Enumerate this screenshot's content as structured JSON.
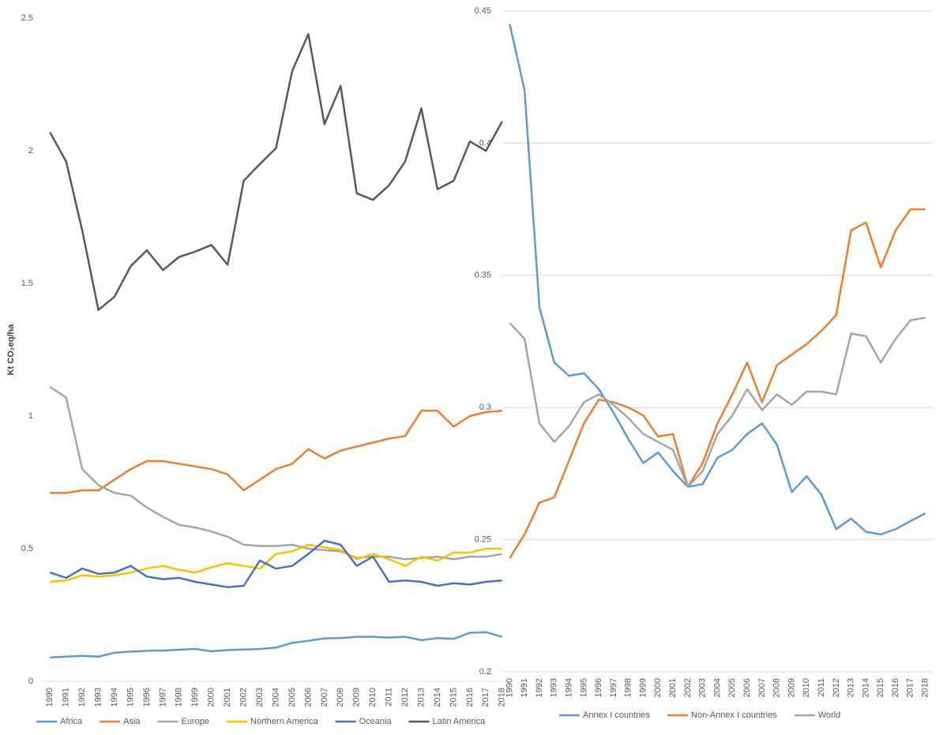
{
  "chart_data": [
    {
      "type": "line",
      "y_label": "Kt CO₂eq/ha",
      "categories": [
        "1990",
        "1991",
        "1992",
        "1993",
        "1994",
        "1995",
        "1996",
        "1997",
        "1998",
        "1999",
        "2000",
        "2001",
        "2002",
        "2003",
        "2004",
        "2005",
        "2006",
        "2007",
        "2008",
        "2009",
        "2010",
        "2011",
        "2012",
        "2013",
        "2014",
        "2015",
        "2016",
        "2017",
        "2018"
      ],
      "ylim": [
        0,
        2.5
      ],
      "yticks": [
        0,
        0.5,
        1,
        1.5,
        2,
        2.5
      ],
      "grid": false,
      "series": [
        {
          "name": "Africa",
          "color": "#5b9bd5",
          "values": [
            0.09,
            0.093,
            0.096,
            0.093,
            0.108,
            0.112,
            0.115,
            0.116,
            0.119,
            0.122,
            0.113,
            0.118,
            0.12,
            0.122,
            0.127,
            0.145,
            0.153,
            0.162,
            0.163,
            0.168,
            0.168,
            0.165,
            0.168,
            0.155,
            0.163,
            0.16,
            0.183,
            0.185,
            0.168
          ]
        },
        {
          "name": "Asia",
          "color": "#ed7d31",
          "values": [
            0.71,
            0.71,
            0.72,
            0.72,
            0.76,
            0.8,
            0.83,
            0.83,
            0.82,
            0.81,
            0.8,
            0.78,
            0.72,
            0.76,
            0.8,
            0.82,
            0.875,
            0.84,
            0.87,
            0.885,
            0.9,
            0.915,
            0.925,
            1.02,
            1.02,
            0.96,
            1.0,
            1.015,
            1.02
          ]
        },
        {
          "name": "Europe",
          "color": "#a5a5a5",
          "values": [
            1.11,
            1.07,
            0.8,
            0.74,
            0.71,
            0.7,
            0.655,
            0.62,
            0.59,
            0.58,
            0.565,
            0.545,
            0.515,
            0.51,
            0.51,
            0.515,
            0.5,
            0.495,
            0.49,
            0.465,
            0.47,
            0.47,
            0.46,
            0.465,
            0.47,
            0.46,
            0.47,
            0.47,
            0.48
          ]
        },
        {
          "name": "Northern America",
          "color": "#ffc000",
          "values": [
            0.375,
            0.38,
            0.4,
            0.395,
            0.4,
            0.41,
            0.425,
            0.435,
            0.42,
            0.41,
            0.43,
            0.445,
            0.435,
            0.425,
            0.48,
            0.49,
            0.515,
            0.505,
            0.495,
            0.46,
            0.48,
            0.46,
            0.435,
            0.47,
            0.455,
            0.485,
            0.485,
            0.5,
            0.5
          ]
        },
        {
          "name": "Oceania",
          "color": "#4472c4",
          "values": [
            0.41,
            0.39,
            0.425,
            0.405,
            0.41,
            0.435,
            0.395,
            0.385,
            0.39,
            0.375,
            0.365,
            0.355,
            0.36,
            0.455,
            0.425,
            0.435,
            0.48,
            0.53,
            0.515,
            0.435,
            0.47,
            0.375,
            0.38,
            0.375,
            0.36,
            0.37,
            0.365,
            0.375,
            0.38
          ]
        },
        {
          "name": "Latin America",
          "color": "#595959",
          "values": [
            2.07,
            1.96,
            1.7,
            1.4,
            1.45,
            1.565,
            1.625,
            1.55,
            1.6,
            1.62,
            1.645,
            1.57,
            1.887,
            1.95,
            2.01,
            2.3,
            2.44,
            2.1,
            2.245,
            1.84,
            1.815,
            1.87,
            1.96,
            2.16,
            1.855,
            1.887,
            2.035,
            2.0,
            2.11
          ]
        }
      ]
    },
    {
      "type": "line",
      "categories": [
        "1990",
        "1991",
        "1992",
        "1993",
        "1994",
        "1995",
        "1996",
        "1997",
        "1998",
        "1999",
        "2000",
        "2001",
        "2002",
        "2003",
        "2004",
        "2005",
        "2006",
        "2007",
        "2008",
        "2009",
        "2010",
        "2011",
        "2012",
        "2013",
        "2014",
        "2015",
        "2016",
        "2017",
        "2018"
      ],
      "ylim": [
        0.2,
        0.45
      ],
      "yticks": [
        0.2,
        0.25,
        0.3,
        0.35,
        0.4,
        0.45
      ],
      "grid": true,
      "series": [
        {
          "name": "Annex I countries",
          "color": "#5b9bd5",
          "values": [
            0.445,
            0.42,
            0.338,
            0.317,
            0.312,
            0.313,
            0.307,
            0.298,
            0.288,
            0.279,
            0.283,
            0.276,
            0.27,
            0.271,
            0.281,
            0.284,
            0.29,
            0.294,
            0.286,
            0.268,
            0.274,
            0.267,
            0.254,
            0.258,
            0.253,
            0.252,
            0.254,
            0.257,
            0.26
          ]
        },
        {
          "name": "Non-Annex I countries",
          "color": "#ed7d31",
          "values": [
            0.243,
            0.252,
            0.264,
            0.266,
            0.28,
            0.294,
            0.303,
            0.302,
            0.3,
            0.297,
            0.289,
            0.29,
            0.27,
            0.279,
            0.294,
            0.305,
            0.317,
            0.302,
            0.316,
            0.32,
            0.324,
            0.329,
            0.335,
            0.367,
            0.37,
            0.353,
            0.367,
            0.375,
            0.375
          ]
        },
        {
          "name": "World",
          "color": "#a5a5a5",
          "values": [
            0.332,
            0.326,
            0.294,
            0.287,
            0.293,
            0.302,
            0.305,
            0.301,
            0.296,
            0.29,
            0.287,
            0.284,
            0.27,
            0.276,
            0.29,
            0.297,
            0.307,
            0.299,
            0.305,
            0.301,
            0.306,
            0.306,
            0.305,
            0.328,
            0.327,
            0.317,
            0.326,
            0.333,
            0.334
          ]
        }
      ]
    }
  ]
}
